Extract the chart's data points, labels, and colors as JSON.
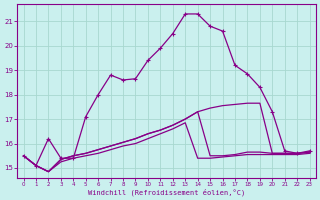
{
  "background_color": "#caf0ee",
  "grid_color": "#a8d8d0",
  "line_color": "#880088",
  "xlim": [
    -0.5,
    23.5
  ],
  "ylim": [
    14.6,
    21.7
  ],
  "x_ticks": [
    0,
    1,
    2,
    3,
    4,
    5,
    6,
    7,
    8,
    9,
    10,
    11,
    12,
    13,
    14,
    15,
    16,
    17,
    18,
    19,
    20,
    21,
    22,
    23
  ],
  "y_ticks": [
    15,
    16,
    17,
    18,
    19,
    20,
    21
  ],
  "xlabel": "Windchill (Refroidissement éolien,°C)",
  "s1_x": [
    0,
    1,
    2,
    3,
    4,
    5,
    6,
    7,
    8,
    9,
    10,
    11,
    12,
    13,
    14,
    15,
    16,
    17,
    18,
    19,
    20,
    21,
    22,
    23
  ],
  "s1_y": [
    15.5,
    15.1,
    16.2,
    15.4,
    15.4,
    17.1,
    18.0,
    18.8,
    18.6,
    18.65,
    19.4,
    19.9,
    20.5,
    21.3,
    21.3,
    20.8,
    20.6,
    19.2,
    18.85,
    18.3,
    17.3,
    15.7,
    15.6,
    15.7
  ],
  "s2_x": [
    0,
    1,
    2,
    3,
    4,
    5,
    6,
    7,
    8,
    9,
    10,
    11,
    12,
    13,
    14,
    15,
    16,
    17,
    18,
    19,
    20,
    21,
    22,
    23
  ],
  "s2_y": [
    15.5,
    15.1,
    14.85,
    15.35,
    15.5,
    15.6,
    15.75,
    15.9,
    16.05,
    16.2,
    16.4,
    16.55,
    16.75,
    17.0,
    17.3,
    17.45,
    17.55,
    17.6,
    17.65,
    17.65,
    15.6,
    15.6,
    15.6,
    15.65
  ],
  "s3_x": [
    0,
    1,
    2,
    3,
    4,
    5,
    6,
    7,
    8,
    9,
    10,
    11,
    12,
    13,
    14,
    15,
    16,
    17,
    18,
    19,
    20,
    21,
    22,
    23
  ],
  "s3_y": [
    15.5,
    15.1,
    14.85,
    15.35,
    15.5,
    15.6,
    15.75,
    15.9,
    16.05,
    16.2,
    16.4,
    16.55,
    16.75,
    17.0,
    17.3,
    15.5,
    15.5,
    15.55,
    15.65,
    15.65,
    15.6,
    15.6,
    15.6,
    15.65
  ],
  "s4_x": [
    0,
    1,
    2,
    3,
    4,
    5,
    6,
    7,
    8,
    9,
    10,
    11,
    12,
    13,
    14,
    15,
    16,
    17,
    18,
    19,
    20,
    21,
    22,
    23
  ],
  "s4_y": [
    15.5,
    15.1,
    14.85,
    15.25,
    15.4,
    15.5,
    15.6,
    15.75,
    15.9,
    16.0,
    16.2,
    16.4,
    16.6,
    16.85,
    15.4,
    15.4,
    15.45,
    15.5,
    15.55,
    15.55,
    15.55,
    15.55,
    15.55,
    15.6
  ]
}
